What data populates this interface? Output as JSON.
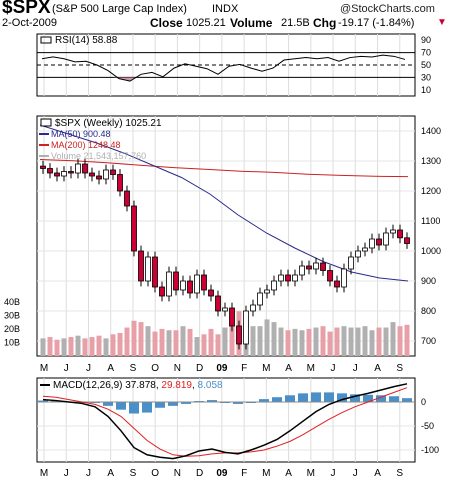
{
  "header": {
    "symbol": "$SPX",
    "name": "(S&P 500 Large Cap Index)",
    "exchange": "INDX",
    "watermark": "@StockCharts.com",
    "date": "2-Oct-2009",
    "close_label": "Close",
    "close_value": "1025.21",
    "volume_label": "Volume",
    "volume_value": "21.5B",
    "chg_label": "Chg",
    "chg_value": "-19.17 (-1.84%)",
    "chg_arrow": "▼"
  },
  "colors": {
    "up_candle": "#ffffff",
    "down_candle": "#cc0033",
    "ma50": "#2a2a8c",
    "ma200": "#cc2222",
    "volume_up": "#b0b0b0",
    "volume_down": "#e8a0a8",
    "macd_line": "#000000",
    "signal_line": "#e02020",
    "histogram": "#4a8fc8",
    "rsi_line": "#000000"
  },
  "chart_data": [
    {
      "type": "line",
      "panel": "rsi",
      "label": "RSI(14)",
      "last_value": "58.88",
      "ylim": [
        0,
        100
      ],
      "y_ticks": [
        "90",
        "70",
        "50",
        "30",
        "10"
      ],
      "reference_lines": [
        70,
        50,
        30
      ],
      "x": [
        0,
        2,
        4,
        6,
        8,
        10,
        12,
        14,
        16,
        18,
        20,
        22,
        24,
        26,
        28,
        30,
        32,
        34,
        36,
        38,
        40,
        42,
        44,
        46,
        48,
        50,
        52,
        54,
        56,
        58,
        60,
        62,
        64,
        66
      ],
      "values": [
        60,
        63,
        60,
        55,
        56,
        50,
        41,
        28,
        24,
        35,
        38,
        31,
        45,
        52,
        48,
        44,
        35,
        48,
        51,
        45,
        40,
        45,
        58,
        60,
        62,
        60,
        62,
        56,
        62,
        64,
        63,
        66,
        64,
        59
      ]
    },
    {
      "type": "candlestick",
      "panel": "price",
      "title": "$SPX (Weekly) 1025.21",
      "ylim": [
        650,
        1450
      ],
      "y_ticks": [
        "1400",
        "1300",
        "1200",
        "1100",
        "1000",
        "900",
        "800",
        "700"
      ],
      "legend": [
        {
          "name": "MA(50)",
          "value": "900.48",
          "color": "#2a2a8c"
        },
        {
          "name": "MA(200)",
          "value": "1248.48",
          "color": "#cc2222"
        },
        {
          "name": "Volume",
          "value": "21,543,157,760",
          "color": "#b0b0b0"
        }
      ],
      "closes": [
        1275,
        1260,
        1250,
        1265,
        1260,
        1290,
        1260,
        1250,
        1240,
        1270,
        1255,
        1200,
        1150,
        1000,
        900,
        980,
        880,
        850,
        930,
        870,
        900,
        860,
        920,
        870,
        850,
        800,
        810,
        750,
        690,
        800,
        820,
        860,
        870,
        900,
        920,
        900,
        920,
        950,
        940,
        960,
        935,
        900,
        880,
        940,
        980,
        1000,
        1010,
        1040,
        1020,
        1060,
        1070,
        1044,
        1025
      ],
      "ma50_values": [
        1420,
        1390,
        1360,
        1325,
        1285,
        1245,
        1190,
        1120,
        1060,
        1010,
        965,
        930,
        910,
        900
      ],
      "ma200_values": [
        1305,
        1301,
        1294,
        1286,
        1278,
        1272,
        1266,
        1262,
        1256,
        1252,
        1249,
        1248
      ]
    },
    {
      "type": "bar",
      "panel": "volume",
      "y_ticks": [
        "40B",
        "30B",
        "20B",
        "10B"
      ],
      "ylim": [
        0,
        45
      ],
      "values": [
        13,
        14,
        12,
        13,
        14,
        15,
        13,
        14,
        15,
        13,
        16,
        17,
        21,
        26,
        25,
        22,
        18,
        20,
        19,
        19,
        22,
        20,
        14,
        16,
        20,
        16,
        21,
        24,
        33,
        25,
        22,
        22,
        27,
        25,
        21,
        19,
        20,
        19,
        20,
        21,
        22,
        18,
        21,
        22,
        21,
        21,
        22,
        19,
        21,
        21,
        25,
        22,
        23
      ]
    },
    {
      "type": "line",
      "panel": "macd",
      "title": "MACD(12,26,9)",
      "macd_value": "37.878",
      "signal_value": "29.819",
      "histogram_value": "8.058",
      "ylim": [
        -125,
        50
      ],
      "y_ticks": [
        "0",
        "-50",
        "-100"
      ],
      "macd": [
        5,
        3,
        0,
        -3,
        -10,
        -30,
        -60,
        -95,
        -110,
        -115,
        -118,
        -112,
        -102,
        -98,
        -105,
        -108,
        -100,
        -90,
        -78,
        -60,
        -40,
        -20,
        -5,
        5,
        12,
        18,
        25,
        32,
        37.9
      ],
      "signal": [
        12,
        10,
        5,
        0,
        -5,
        -15,
        -30,
        -55,
        -80,
        -98,
        -110,
        -113,
        -112,
        -108,
        -106,
        -106,
        -104,
        -100,
        -92,
        -82,
        -68,
        -52,
        -36,
        -22,
        -10,
        0,
        10,
        20,
        29.8
      ],
      "histogram": [
        3,
        2,
        1,
        0,
        -2,
        -8,
        -16,
        -24,
        -22,
        -12,
        -8,
        -4,
        2,
        4,
        -2,
        -4,
        0,
        6,
        10,
        14,
        18,
        20,
        20,
        18,
        16,
        15,
        14,
        12,
        8
      ]
    }
  ],
  "x_axis_labels": [
    "M",
    "J",
    "J",
    "A",
    "S",
    "O",
    "N",
    "D",
    "09",
    "F",
    "M",
    "A",
    "M",
    "J",
    "J",
    "A",
    "S"
  ]
}
